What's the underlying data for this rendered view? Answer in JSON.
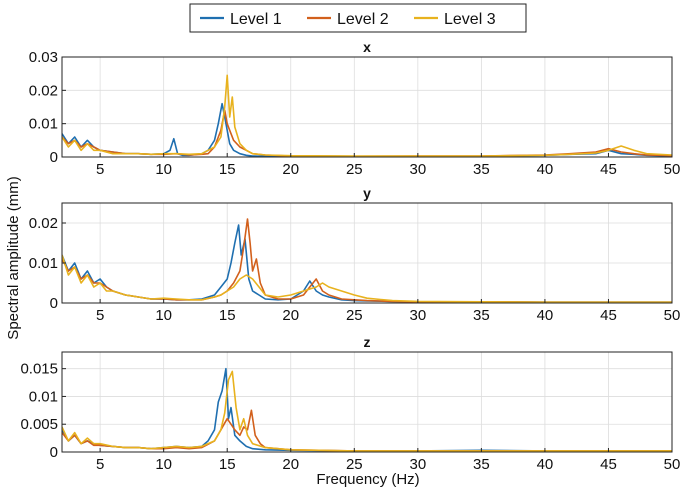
{
  "colors": {
    "level1": "#1F6FB0",
    "level2": "#D2601C",
    "level3": "#E8B21E",
    "grid": "#DDDDDD",
    "axis": "#222222"
  },
  "legend": {
    "placement": "top-center",
    "items": [
      "Level 1",
      "Level 2",
      "Level 3"
    ]
  },
  "figure": {
    "shared_ylabel": "Spectral amplitude (mm)",
    "shared_xlabel": "Frequency (Hz)"
  },
  "chart_data": [
    {
      "type": "line",
      "title": "x",
      "xlabel": "",
      "ylabel": "Spectral amplitude (mm)",
      "xlim": [
        2,
        50
      ],
      "ylim": [
        0,
        0.03
      ],
      "xticks": [
        5,
        10,
        15,
        20,
        25,
        30,
        35,
        40,
        45,
        50
      ],
      "yticks": [
        0,
        0.01,
        0.02,
        0.03
      ],
      "ytick_labels": [
        "0",
        "0.01",
        "0.02",
        "0.03"
      ],
      "grid": true,
      "series": [
        {
          "name": "Level 1",
          "color_key": "level1",
          "x": [
            2,
            2.5,
            3,
            3.5,
            4,
            4.5,
            5,
            6,
            7,
            8,
            9,
            10,
            10.5,
            10.8,
            11.1,
            11.5,
            12,
            13,
            13.5,
            14,
            14.3,
            14.6,
            14.8,
            15,
            15.2,
            15.5,
            16,
            16.5,
            17,
            18,
            20,
            25,
            30,
            35,
            40,
            42,
            44,
            45,
            46,
            47,
            48,
            50
          ],
          "y": [
            0.007,
            0.004,
            0.006,
            0.003,
            0.005,
            0.003,
            0.002,
            0.0015,
            0.001,
            0.001,
            0.0008,
            0.001,
            0.002,
            0.0055,
            0.001,
            0.0005,
            0.0005,
            0.001,
            0.002,
            0.005,
            0.01,
            0.016,
            0.012,
            0.008,
            0.004,
            0.002,
            0.001,
            0.0005,
            0.0003,
            0.0002,
            0.0003,
            0.0002,
            0.0002,
            0.0002,
            0.0005,
            0.0008,
            0.001,
            0.002,
            0.001,
            0.0008,
            0.0005,
            0.0003
          ]
        },
        {
          "name": "Level 2",
          "color_key": "level2",
          "x": [
            2,
            2.5,
            3,
            3.5,
            4,
            4.5,
            5,
            6,
            7,
            8,
            9,
            10,
            11,
            12,
            13,
            13.5,
            14,
            14.5,
            14.8,
            15,
            15.2,
            15.5,
            16,
            16.5,
            17,
            18,
            20,
            25,
            30,
            35,
            40,
            42,
            44,
            45,
            46,
            47,
            48,
            50
          ],
          "y": [
            0.006,
            0.004,
            0.005,
            0.003,
            0.004,
            0.003,
            0.002,
            0.0015,
            0.001,
            0.001,
            0.0008,
            0.0008,
            0.001,
            0.0006,
            0.0008,
            0.001,
            0.003,
            0.008,
            0.014,
            0.01,
            0.008,
            0.005,
            0.003,
            0.002,
            0.001,
            0.0006,
            0.0003,
            0.0002,
            0.0003,
            0.0003,
            0.0006,
            0.001,
            0.0015,
            0.0025,
            0.0015,
            0.001,
            0.0006,
            0.0004
          ]
        },
        {
          "name": "Level 3",
          "color_key": "level3",
          "x": [
            2,
            2.5,
            3,
            3.5,
            4,
            4.5,
            5,
            6,
            7,
            8,
            9,
            10,
            11,
            12,
            13,
            13.5,
            14,
            14.5,
            14.8,
            15,
            15.2,
            15.4,
            15.6,
            16,
            16.5,
            17,
            18,
            20,
            25,
            30,
            35,
            40,
            42,
            44,
            45,
            46,
            47,
            48,
            50
          ],
          "y": [
            0.006,
            0.003,
            0.005,
            0.002,
            0.004,
            0.002,
            0.002,
            0.001,
            0.001,
            0.001,
            0.0008,
            0.001,
            0.001,
            0.0008,
            0.001,
            0.002,
            0.003,
            0.006,
            0.015,
            0.0245,
            0.012,
            0.018,
            0.009,
            0.004,
            0.002,
            0.001,
            0.0006,
            0.0004,
            0.0003,
            0.0003,
            0.0003,
            0.0005,
            0.0008,
            0.0012,
            0.002,
            0.0033,
            0.002,
            0.001,
            0.0006
          ]
        }
      ]
    },
    {
      "type": "line",
      "title": "y",
      "xlabel": "",
      "ylabel": "Spectral amplitude (mm)",
      "xlim": [
        2,
        50
      ],
      "ylim": [
        0,
        0.025
      ],
      "xticks": [
        5,
        10,
        15,
        20,
        25,
        30,
        35,
        40,
        45,
        50
      ],
      "yticks": [
        0,
        0.01,
        0.02
      ],
      "ytick_labels": [
        "0",
        "0.01",
        "0.02"
      ],
      "grid": true,
      "series": [
        {
          "name": "Level 1",
          "color_key": "level1",
          "x": [
            2,
            2.5,
            3,
            3.5,
            4,
            4.5,
            5,
            5.5,
            6,
            7,
            8,
            9,
            10,
            11,
            12,
            13,
            14,
            14.5,
            15,
            15.3,
            15.6,
            15.9,
            16.1,
            16.4,
            16.7,
            17,
            17.5,
            18,
            19,
            20,
            21,
            21.5,
            22,
            22.5,
            23,
            24,
            25,
            26,
            28,
            30,
            35,
            40,
            45,
            50
          ],
          "y": [
            0.012,
            0.008,
            0.01,
            0.006,
            0.008,
            0.005,
            0.006,
            0.004,
            0.003,
            0.002,
            0.0015,
            0.001,
            0.001,
            0.0008,
            0.0008,
            0.001,
            0.002,
            0.004,
            0.006,
            0.01,
            0.015,
            0.0195,
            0.012,
            0.016,
            0.006,
            0.003,
            0.002,
            0.001,
            0.0008,
            0.001,
            0.003,
            0.0055,
            0.003,
            0.002,
            0.0015,
            0.0008,
            0.0006,
            0.0005,
            0.0004,
            0.0003,
            0.0003,
            0.0002,
            0.0002,
            0.0002
          ]
        },
        {
          "name": "Level 2",
          "color_key": "level2",
          "x": [
            2,
            2.5,
            3,
            3.5,
            4,
            4.5,
            5,
            5.5,
            6,
            7,
            8,
            9,
            10,
            11,
            12,
            13,
            14,
            14.5,
            15,
            15.5,
            16,
            16.3,
            16.6,
            16.8,
            17,
            17.3,
            17.6,
            18,
            19,
            20,
            21,
            21.5,
            22,
            22.5,
            23,
            24,
            25,
            26,
            28,
            30,
            35,
            40,
            45,
            50
          ],
          "y": [
            0.011,
            0.008,
            0.009,
            0.006,
            0.007,
            0.005,
            0.005,
            0.004,
            0.003,
            0.002,
            0.0015,
            0.001,
            0.001,
            0.0008,
            0.0008,
            0.0008,
            0.0015,
            0.002,
            0.003,
            0.005,
            0.008,
            0.014,
            0.021,
            0.015,
            0.008,
            0.011,
            0.005,
            0.002,
            0.001,
            0.001,
            0.002,
            0.004,
            0.006,
            0.003,
            0.002,
            0.001,
            0.0008,
            0.0006,
            0.0004,
            0.0003,
            0.0003,
            0.0002,
            0.0002,
            0.0002
          ]
        },
        {
          "name": "Level 3",
          "color_key": "level3",
          "x": [
            2,
            2.5,
            3,
            3.5,
            4,
            4.5,
            5,
            5.5,
            6,
            7,
            8,
            9,
            10,
            11,
            12,
            13,
            14,
            14.5,
            15,
            15.5,
            16,
            16.5,
            17,
            17.5,
            18,
            19,
            20,
            21,
            22,
            22.5,
            23,
            24,
            25,
            26,
            28,
            30,
            35,
            40,
            45,
            50
          ],
          "y": [
            0.012,
            0.007,
            0.009,
            0.005,
            0.007,
            0.004,
            0.005,
            0.003,
            0.003,
            0.002,
            0.0015,
            0.001,
            0.0012,
            0.001,
            0.0008,
            0.0008,
            0.0015,
            0.002,
            0.003,
            0.004,
            0.006,
            0.007,
            0.006,
            0.004,
            0.002,
            0.0015,
            0.002,
            0.003,
            0.004,
            0.005,
            0.004,
            0.003,
            0.002,
            0.0012,
            0.0006,
            0.0004,
            0.0003,
            0.0002,
            0.0002,
            0.0002
          ]
        }
      ]
    },
    {
      "type": "line",
      "title": "z",
      "xlabel": "Frequency (Hz)",
      "ylabel": "Spectral amplitude (mm)",
      "xlim": [
        2,
        50
      ],
      "ylim": [
        0,
        0.018
      ],
      "xticks": [
        5,
        10,
        15,
        20,
        25,
        30,
        35,
        40,
        45,
        50
      ],
      "yticks": [
        0,
        0.005,
        0.01,
        0.015
      ],
      "ytick_labels": [
        "0",
        "0.005",
        "0.01",
        "0.015"
      ],
      "grid": true,
      "series": [
        {
          "name": "Level 1",
          "color_key": "level1",
          "x": [
            2,
            2.5,
            3,
            3.5,
            4,
            4.5,
            5,
            6,
            7,
            8,
            9,
            10,
            11,
            12,
            13,
            13.5,
            14,
            14.3,
            14.6,
            14.9,
            15.1,
            15.3,
            15.6,
            16,
            16.5,
            17,
            18,
            20,
            25,
            30,
            35,
            40,
            45,
            50
          ],
          "y": [
            0.004,
            0.002,
            0.003,
            0.0015,
            0.002,
            0.0015,
            0.0012,
            0.001,
            0.0008,
            0.0008,
            0.0006,
            0.0008,
            0.001,
            0.0008,
            0.001,
            0.002,
            0.004,
            0.009,
            0.011,
            0.015,
            0.006,
            0.008,
            0.003,
            0.002,
            0.001,
            0.0006,
            0.0004,
            0.0003,
            0.0002,
            0.0002,
            0.0003,
            0.0002,
            0.0002,
            0.0002
          ]
        },
        {
          "name": "Level 2",
          "color_key": "level2",
          "x": [
            2,
            2.5,
            3,
            3.5,
            4,
            4.5,
            5,
            6,
            7,
            8,
            9,
            10,
            11,
            12,
            13,
            14,
            14.5,
            15,
            15.3,
            15.6,
            16,
            16.3,
            16.6,
            16.9,
            17.2,
            17.6,
            18,
            20,
            25,
            30,
            35,
            40,
            45,
            50
          ],
          "y": [
            0.0035,
            0.002,
            0.003,
            0.0015,
            0.002,
            0.0012,
            0.0012,
            0.001,
            0.0008,
            0.0008,
            0.0006,
            0.0006,
            0.0008,
            0.0006,
            0.0008,
            0.002,
            0.004,
            0.006,
            0.005,
            0.004,
            0.003,
            0.0045,
            0.004,
            0.0075,
            0.003,
            0.0015,
            0.0008,
            0.0004,
            0.0002,
            0.0002,
            0.0002,
            0.0002,
            0.0002,
            0.0002
          ]
        },
        {
          "name": "Level 3",
          "color_key": "level3",
          "x": [
            2,
            2.5,
            3,
            3.5,
            4,
            4.5,
            5,
            6,
            7,
            8,
            9,
            10,
            11,
            12,
            13,
            14,
            14.5,
            14.8,
            15.1,
            15.4,
            15.7,
            16,
            16.3,
            16.6,
            17,
            18,
            20,
            25,
            30,
            35,
            40,
            45,
            50
          ],
          "y": [
            0.0045,
            0.002,
            0.0035,
            0.0015,
            0.0025,
            0.0015,
            0.0015,
            0.001,
            0.0008,
            0.0008,
            0.0006,
            0.0008,
            0.001,
            0.0008,
            0.001,
            0.002,
            0.004,
            0.007,
            0.013,
            0.0145,
            0.008,
            0.004,
            0.006,
            0.003,
            0.0015,
            0.0008,
            0.0004,
            0.0002,
            0.0002,
            0.0002,
            0.0002,
            0.0002,
            0.0002
          ]
        }
      ]
    }
  ]
}
